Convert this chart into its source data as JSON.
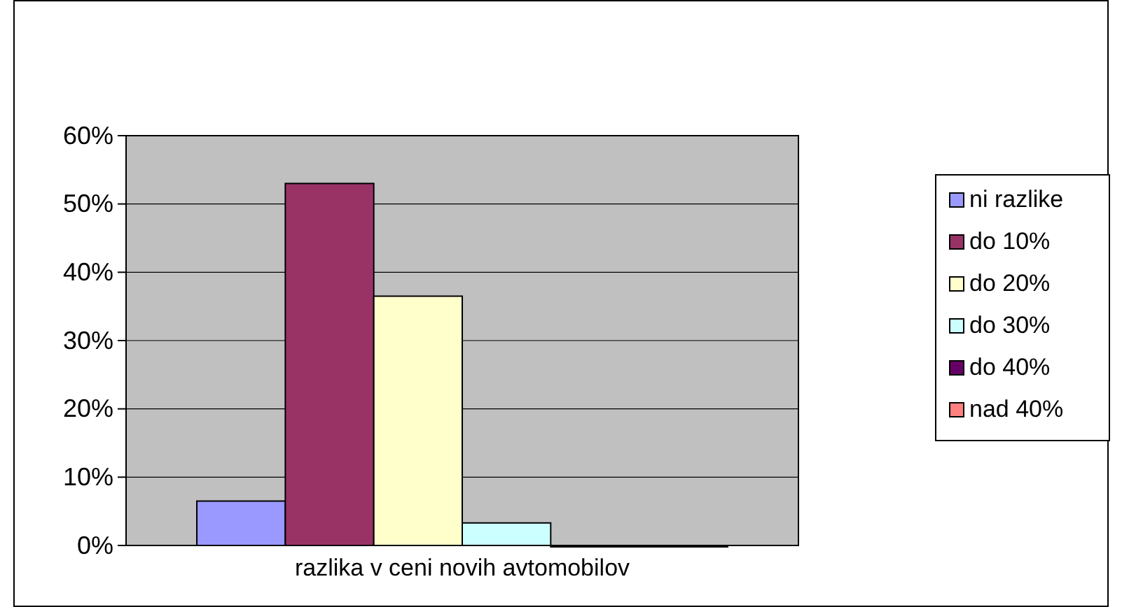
{
  "chart_data": {
    "type": "bar",
    "categories": [
      "razlika v ceni novih avtomobilov"
    ],
    "series": [
      {
        "name": "ni razlike",
        "color": "#9999ff",
        "values": [
          6.5
        ]
      },
      {
        "name": "do 10%",
        "color": "#993366",
        "values": [
          53
        ]
      },
      {
        "name": "do 20%",
        "color": "#ffffcc",
        "values": [
          36.5
        ]
      },
      {
        "name": "do 30%",
        "color": "#ccffff",
        "values": [
          3.3
        ]
      },
      {
        "name": "do 40%",
        "color": "#660066",
        "values": [
          0
        ]
      },
      {
        "name": "nad 40%",
        "color": "#ff8080",
        "values": [
          0
        ]
      }
    ],
    "ylim": [
      0,
      60
    ],
    "yticks": [
      {
        "value": 0,
        "label": "0%"
      },
      {
        "value": 10,
        "label": "10%"
      },
      {
        "value": 20,
        "label": "20%"
      },
      {
        "value": 30,
        "label": "30%"
      },
      {
        "value": 40,
        "label": "40%"
      },
      {
        "value": 50,
        "label": "50%"
      },
      {
        "value": 60,
        "label": "60%"
      }
    ],
    "grid": "y",
    "legend": "right"
  }
}
